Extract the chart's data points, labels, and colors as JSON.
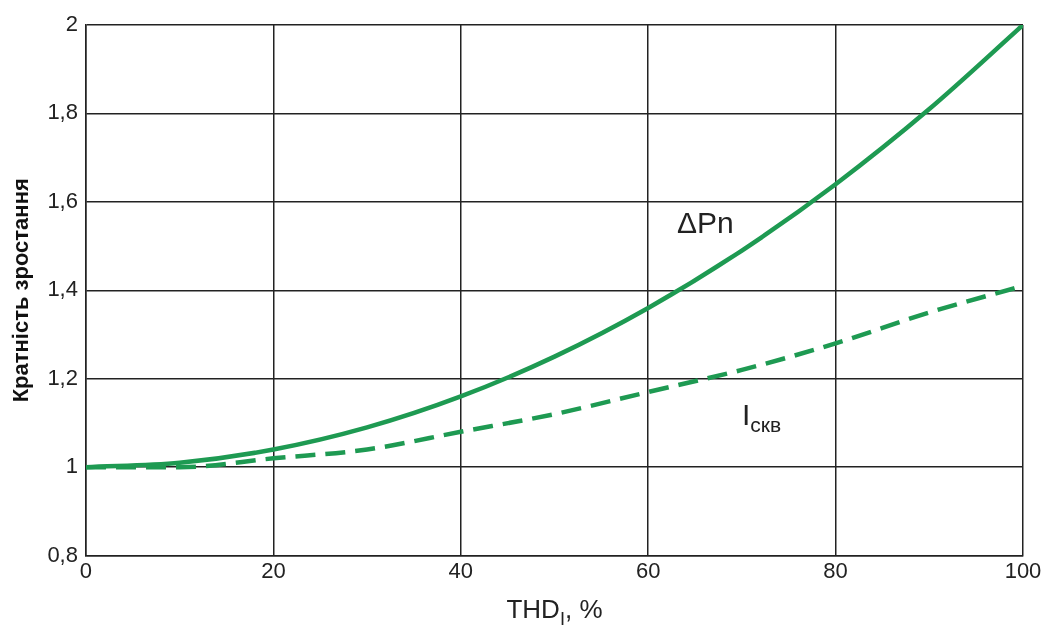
{
  "chart_data": {
    "type": "line",
    "xlabel": "THD$_{I}$, %",
    "ylabel": "Кратність зростання",
    "x": [
      0,
      10,
      20,
      30,
      40,
      50,
      60,
      70,
      80,
      90,
      100
    ],
    "series": [
      {
        "name": "ΔPn",
        "color": "#1e9a52",
        "line_style": "solid",
        "values": [
          1.0,
          1.01,
          1.04,
          1.09,
          1.16,
          1.25,
          1.36,
          1.49,
          1.64,
          1.81,
          2.0
        ]
      },
      {
        "name": "I$_{скв}$",
        "color": "#1e9a52",
        "line_style": "dashed",
        "values": [
          1.0,
          1.0,
          1.02,
          1.04,
          1.08,
          1.12,
          1.17,
          1.22,
          1.28,
          1.35,
          1.41
        ]
      }
    ],
    "xlim": [
      0,
      100
    ],
    "xticks": [
      0,
      20,
      40,
      60,
      80,
      100
    ],
    "ylim": [
      0.8,
      2
    ],
    "yticks": [
      {
        "value": 0.8,
        "label": "0,8"
      },
      {
        "value": 1,
        "label": "1"
      },
      {
        "value": 1.2,
        "label": "1,2"
      },
      {
        "value": 1.4,
        "label": "1,4"
      },
      {
        "value": 1.6,
        "label": "1,6"
      },
      {
        "value": 1.8,
        "label": "1,8"
      },
      {
        "value": 2,
        "label": "2"
      }
    ],
    "grid": true,
    "legend": false,
    "marker": "none"
  }
}
